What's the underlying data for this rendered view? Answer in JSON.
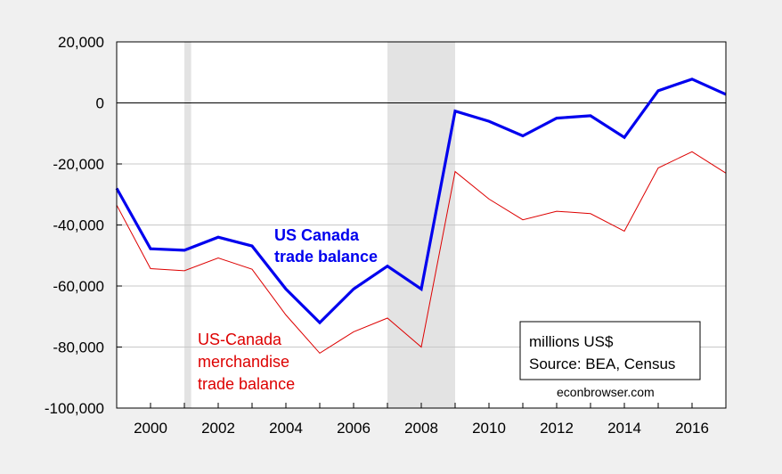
{
  "chart_data": {
    "type": "line",
    "x": [
      1999,
      2000,
      2001,
      2002,
      2003,
      2004,
      2005,
      2006,
      2007,
      2008,
      2009,
      2010,
      2011,
      2012,
      2013,
      2014,
      2015,
      2016,
      2017
    ],
    "xlim": [
      1999,
      2017
    ],
    "ylim": [
      -100000,
      20000
    ],
    "x_ticks": [
      2000,
      2002,
      2004,
      2006,
      2008,
      2010,
      2012,
      2014,
      2016
    ],
    "y_ticks": [
      {
        "value": 20000,
        "label": "20,000"
      },
      {
        "value": 0,
        "label": "0"
      },
      {
        "value": -20000,
        "label": "-20,000"
      },
      {
        "value": -40000,
        "label": "-40,000"
      },
      {
        "value": -60000,
        "label": "-60,000"
      },
      {
        "value": -80000,
        "label": "-80,000"
      },
      {
        "value": -100000,
        "label": "-100,000"
      }
    ],
    "grid": true,
    "recession_shading": [
      [
        2001,
        2001.2
      ],
      [
        2007,
        2009
      ]
    ],
    "series": [
      {
        "name": "US Canada trade balance",
        "color": "#0000ee",
        "values": [
          -28000,
          -47800,
          -48300,
          -44000,
          -46900,
          -61000,
          -72000,
          -61000,
          -53500,
          -61000,
          -2700,
          -6000,
          -10800,
          -5000,
          -4200,
          -11300,
          4000,
          7800,
          2800
        ]
      },
      {
        "name": "US-Canada merchandise trade balance",
        "color": "#dd0000",
        "values": [
          -33500,
          -54300,
          -55000,
          -50800,
          -54500,
          -69500,
          -82000,
          -75000,
          -70500,
          -80000,
          -22500,
          -31500,
          -38300,
          -35500,
          -36300,
          -42000,
          -21300,
          -16000,
          -23000
        ]
      }
    ],
    "annotations": {
      "blue_label": [
        "US Canada",
        "trade balance"
      ],
      "red_label": [
        "US-Canada",
        "merchandise",
        "trade balance"
      ],
      "source_box": [
        "millions US$",
        "Source: BEA, Census"
      ],
      "credit": "econbrowser.com"
    }
  }
}
